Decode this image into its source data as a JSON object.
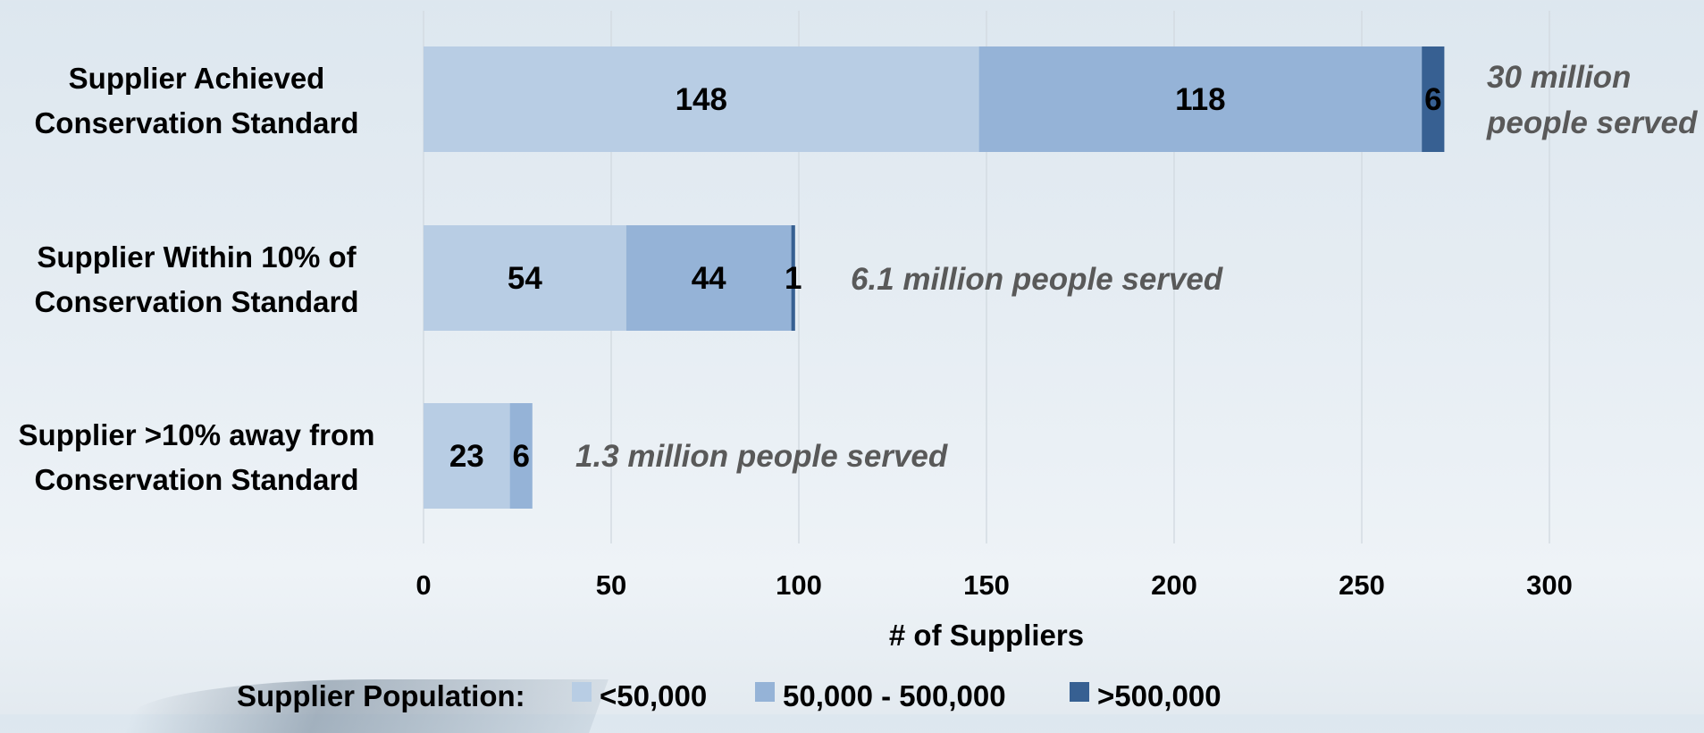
{
  "chart_data": {
    "type": "bar",
    "orientation": "horizontal",
    "stacked": true,
    "categories": [
      "Supplier Achieved Conservation Standard",
      "Supplier Within 10% of Conservation Standard",
      "Supplier >10% away from Conservation Standard"
    ],
    "category_lines": [
      [
        "Supplier Achieved",
        "Conservation Standard"
      ],
      [
        "Supplier Within 10% of",
        "Conservation Standard"
      ],
      [
        "Supplier >10% away from",
        "Conservation Standard"
      ]
    ],
    "series": [
      {
        "name": "<50,000",
        "values": [
          148,
          54,
          23
        ],
        "color": "#b8cde4"
      },
      {
        "name": "50,000 - 500,000",
        "values": [
          118,
          44,
          6
        ],
        "color": "#95b3d7"
      },
      {
        "name": ">500,000",
        "values": [
          6,
          1,
          0
        ],
        "color": "#376092"
      }
    ],
    "data_labels": [
      [
        "148",
        "118",
        "6"
      ],
      [
        "54",
        "44",
        "1"
      ],
      [
        "23",
        "6",
        ""
      ]
    ],
    "annotations": [
      {
        "category_index": 0,
        "lines": [
          "30 million",
          "people served"
        ]
      },
      {
        "category_index": 1,
        "lines": [
          "6.1 million people served"
        ]
      },
      {
        "category_index": 2,
        "lines": [
          "1.3 million people served"
        ]
      }
    ],
    "xlabel": "# of Suppliers",
    "ylabel": "",
    "xlim": [
      0,
      300
    ],
    "xticks": [
      0,
      50,
      100,
      150,
      200,
      250,
      300
    ],
    "grid": true,
    "legend": {
      "title": "Supplier Population:",
      "position": "bottom",
      "entries": [
        "<50,000",
        "50,000 - 500,000",
        ">500,000"
      ]
    },
    "colors": {
      "grid": "#d3dbe2",
      "text": "#000000",
      "annotation": "#595959"
    }
  }
}
